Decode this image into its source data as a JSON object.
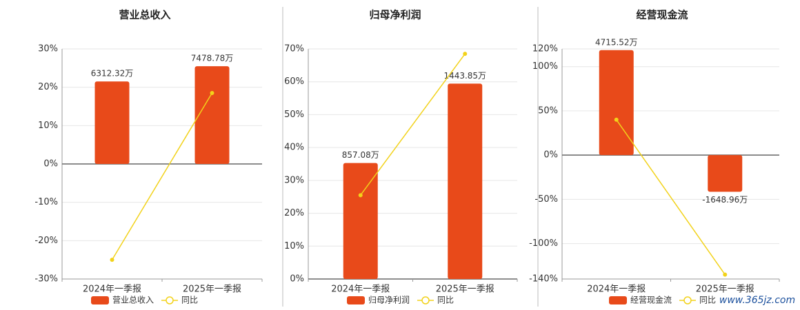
{
  "chart_data": [
    {
      "type": "bar_line",
      "title": "营业总收入",
      "categories": [
        "2024年一季报",
        "2025年一季报"
      ],
      "series": [
        {
          "name": "营业总收入",
          "color": "#e84a1a",
          "axis": "y2",
          "values": [
            6312.32,
            7478.78
          ],
          "value_labels": [
            "6312.32万",
            "7478.78万"
          ]
        },
        {
          "name": "同比",
          "color": "#f2d21a",
          "values": [
            -25,
            18.5
          ]
        }
      ],
      "ylim": [
        -30,
        30
      ],
      "yticks": [
        {
          "value": -30,
          "label": "-30%"
        },
        {
          "value": -20,
          "label": "-20%"
        },
        {
          "value": -10,
          "label": "-10%"
        },
        {
          "value": 0,
          "label": "0%"
        },
        {
          "value": 10,
          "label": "10%"
        },
        {
          "value": 20,
          "label": "20%"
        },
        {
          "value": 30,
          "label": "30%"
        }
      ],
      "y2lim": [
        -8800,
        8800
      ],
      "grid": true
    },
    {
      "type": "bar_line",
      "title": "归母净利润",
      "categories": [
        "2024年一季报",
        "2025年一季报"
      ],
      "series": [
        {
          "name": "归母净利润",
          "color": "#e84a1a",
          "axis": "y2",
          "values": [
            857.08,
            1443.85
          ],
          "value_labels": [
            "857.08万",
            "1443.85万"
          ]
        },
        {
          "name": "同比",
          "color": "#f2d21a",
          "values": [
            25.5,
            68.5
          ]
        }
      ],
      "ylim": [
        0,
        70
      ],
      "yticks": [
        {
          "value": 0,
          "label": "0%"
        },
        {
          "value": 10,
          "label": "10%"
        },
        {
          "value": 20,
          "label": "20%"
        },
        {
          "value": 30,
          "label": "30%"
        },
        {
          "value": 40,
          "label": "40%"
        },
        {
          "value": 50,
          "label": "50%"
        },
        {
          "value": 60,
          "label": "60%"
        },
        {
          "value": 70,
          "label": "70%"
        }
      ],
      "y2lim": [
        0,
        1700
      ],
      "grid": true
    },
    {
      "type": "bar_line",
      "title": "经营现金流",
      "categories": [
        "2024年一季报",
        "2025年一季报"
      ],
      "series": [
        {
          "name": "经营现金流",
          "color": "#e84a1a",
          "axis": "y2",
          "values": [
            4715.52,
            -1648.96
          ],
          "value_labels": [
            "4715.52万",
            "-1648.96万"
          ]
        },
        {
          "name": "同比",
          "color": "#f2d21a",
          "values": [
            40,
            -135
          ]
        }
      ],
      "ylim": [
        -140,
        120
      ],
      "yticks": [
        {
          "value": -140,
          "label": "-140%"
        },
        {
          "value": -100,
          "label": "-100%"
        },
        {
          "value": -50,
          "label": "-50%"
        },
        {
          "value": 0,
          "label": "0%"
        },
        {
          "value": 50,
          "label": "50%"
        },
        {
          "value": 100,
          "label": "100%"
        },
        {
          "value": 120,
          "label": "120%"
        }
      ],
      "y2lim": [
        -5570,
        4770
      ],
      "grid": true
    }
  ],
  "watermark": "www.365jz.com"
}
